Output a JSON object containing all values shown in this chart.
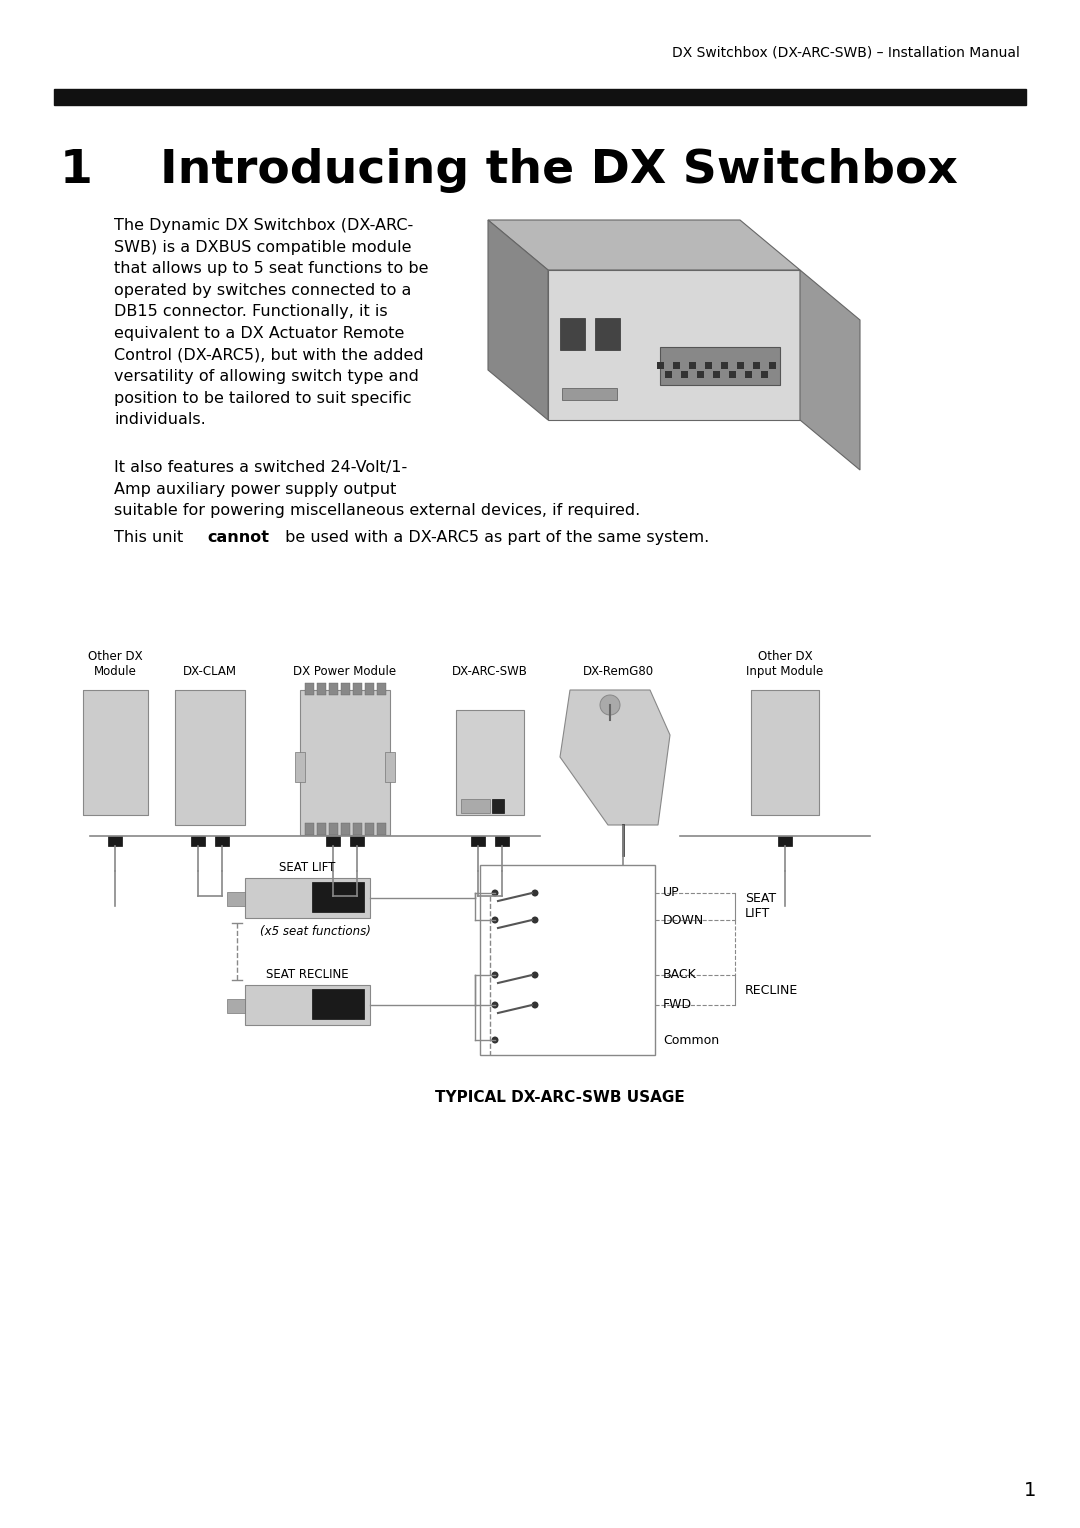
{
  "header_text": "DX Switchbox (DX-ARC-SWB) – Installation Manual",
  "chapter_num": "1",
  "chapter_title": "Introducing the DX Switchbox",
  "para1": "The Dynamic DX Switchbox (DX-ARC-\nSWB) is a DXBUS compatible module\nthat allows up to 5 seat functions to be\noperated by switches connected to a\nDB15 connector. Functionally, it is\nequivalent to a DX Actuator Remote\nControl (DX-ARC5), but with the added\nversatility of allowing switch type and\nposition to be tailored to suit specific\nindividuals.",
  "para2": "It also features a switched 24-Volt/1-\nAmp auxiliary power supply output\nsuitable for powering miscellaneous external devices, if required.",
  "para3_normal": "This unit ",
  "para3_bold": "cannot",
  "para3_end": " be used with a DX-ARC5 as part of the same system.",
  "diagram_title": "TYPICAL DX-ARC-SWB USAGE",
  "module_labels": [
    "Other DX\nModule",
    "DX-CLAM",
    "DX Power Module",
    "DX-ARC-SWB",
    "DX-RemG80",
    "Other DX\nInput Module"
  ],
  "page_num": "1",
  "bg_color": "#ffffff",
  "text_color": "#000000",
  "bar_color": "#111111",
  "module_fill": "#cccccc",
  "module_edge": "#888888",
  "connector_fill": "#1a1a1a",
  "line_color": "#555555"
}
